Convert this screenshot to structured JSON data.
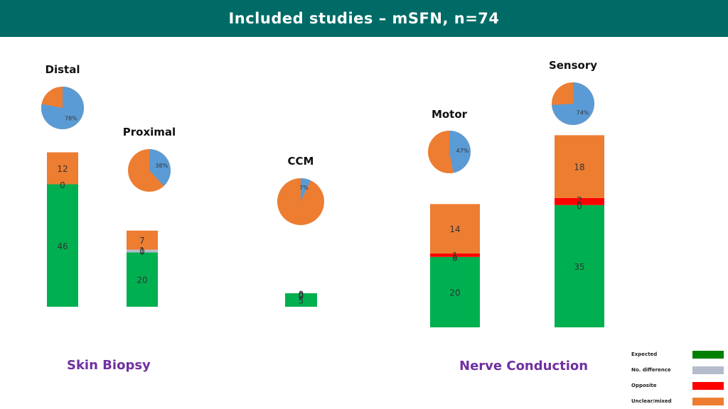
{
  "title": "Included studies – mSFN, n=74",
  "colors": {
    "expected": "#00b050",
    "no_difference": "#b4bccc",
    "opposite": "#ff0000",
    "unclear_mixed": "#ed7d31",
    "pie_blue": "#5b9bd5",
    "header": "#006b66",
    "section_label": "#7030a0"
  },
  "legend": {
    "items": [
      {
        "label": "Expected",
        "color": "#008000"
      },
      {
        "label": "No. difference",
        "color": "#b4bccc"
      },
      {
        "label": "Opposite",
        "color": "#ff0000"
      },
      {
        "label": "Unclear/mixed",
        "color": "#ed7d31"
      }
    ]
  },
  "sections": {
    "skin_biopsy": "Skin Biopsy",
    "nerve_conduction": "Nerve Conduction"
  },
  "chart_data": {
    "type": "bar",
    "stacked": true,
    "categories": [
      "Distal",
      "Proximal",
      "CCM",
      "Motor",
      "Sensory"
    ],
    "series": [
      {
        "name": "Expected",
        "values": [
          46,
          20,
          5,
          20,
          35
        ]
      },
      {
        "name": "No. difference",
        "values": [
          0,
          1,
          0,
          0,
          0
        ]
      },
      {
        "name": "Opposite",
        "values": [
          0,
          0,
          0,
          1,
          2
        ]
      },
      {
        "name": "Unclear/mixed",
        "values": [
          12,
          7,
          0,
          14,
          18
        ]
      }
    ],
    "segment_labels": [
      [
        "46",
        "0",
        "",
        "12"
      ],
      [
        "20",
        "1",
        "0",
        "7"
      ],
      [
        "5",
        "0",
        "0",
        "0"
      ],
      [
        "20",
        "0",
        "1",
        "14"
      ],
      [
        "35",
        "0",
        "2",
        "18"
      ]
    ],
    "pies": [
      {
        "category": "Distal",
        "percent": 78,
        "label": "78%"
      },
      {
        "category": "Proximal",
        "percent": 38,
        "label": "38%"
      },
      {
        "category": "CCM",
        "percent": 7,
        "label": "7%"
      },
      {
        "category": "Motor",
        "percent": 47,
        "label": "47%"
      },
      {
        "category": "Sensory",
        "percent": 74,
        "label": "74%"
      }
    ]
  }
}
